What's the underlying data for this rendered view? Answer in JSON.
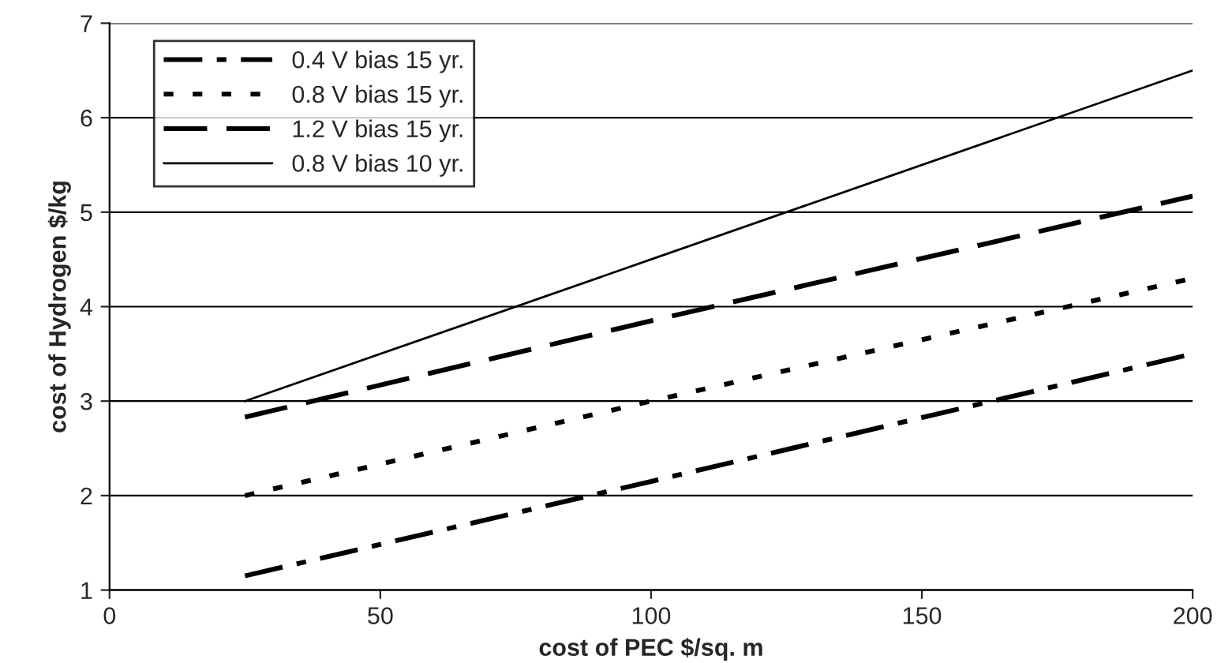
{
  "chart_data": {
    "type": "line",
    "xlabel": "cost of PEC $/sq. m",
    "ylabel": "cost of Hydrogen $/kg",
    "x": [
      25,
      100,
      200
    ],
    "series": [
      {
        "name": "0.4 V bias 15 yr.",
        "color": "#000000",
        "line_style": "dashdot",
        "values": [
          1.15,
          2.15,
          3.5
        ]
      },
      {
        "name": "0.8 V bias 15 yr.",
        "color": "#000000",
        "line_style": "dotted",
        "values": [
          2.0,
          3.0,
          4.3
        ]
      },
      {
        "name": "1.2 V bias 15 yr.",
        "color": "#000000",
        "line_style": "dashed",
        "values": [
          2.83,
          3.85,
          5.17
        ]
      },
      {
        "name": "0.8 V bias 10 yr.",
        "color": "#000000",
        "line_style": "solid",
        "values": [
          3.0,
          4.5,
          6.5
        ]
      }
    ],
    "xlim": [
      0,
      200
    ],
    "xticks": [
      0,
      50,
      100,
      150,
      200
    ],
    "ylim": [
      1,
      7
    ],
    "yticks": [
      1,
      2,
      3,
      4,
      5,
      6,
      7
    ],
    "grid": "y",
    "legend": "top left",
    "marker": "none"
  }
}
